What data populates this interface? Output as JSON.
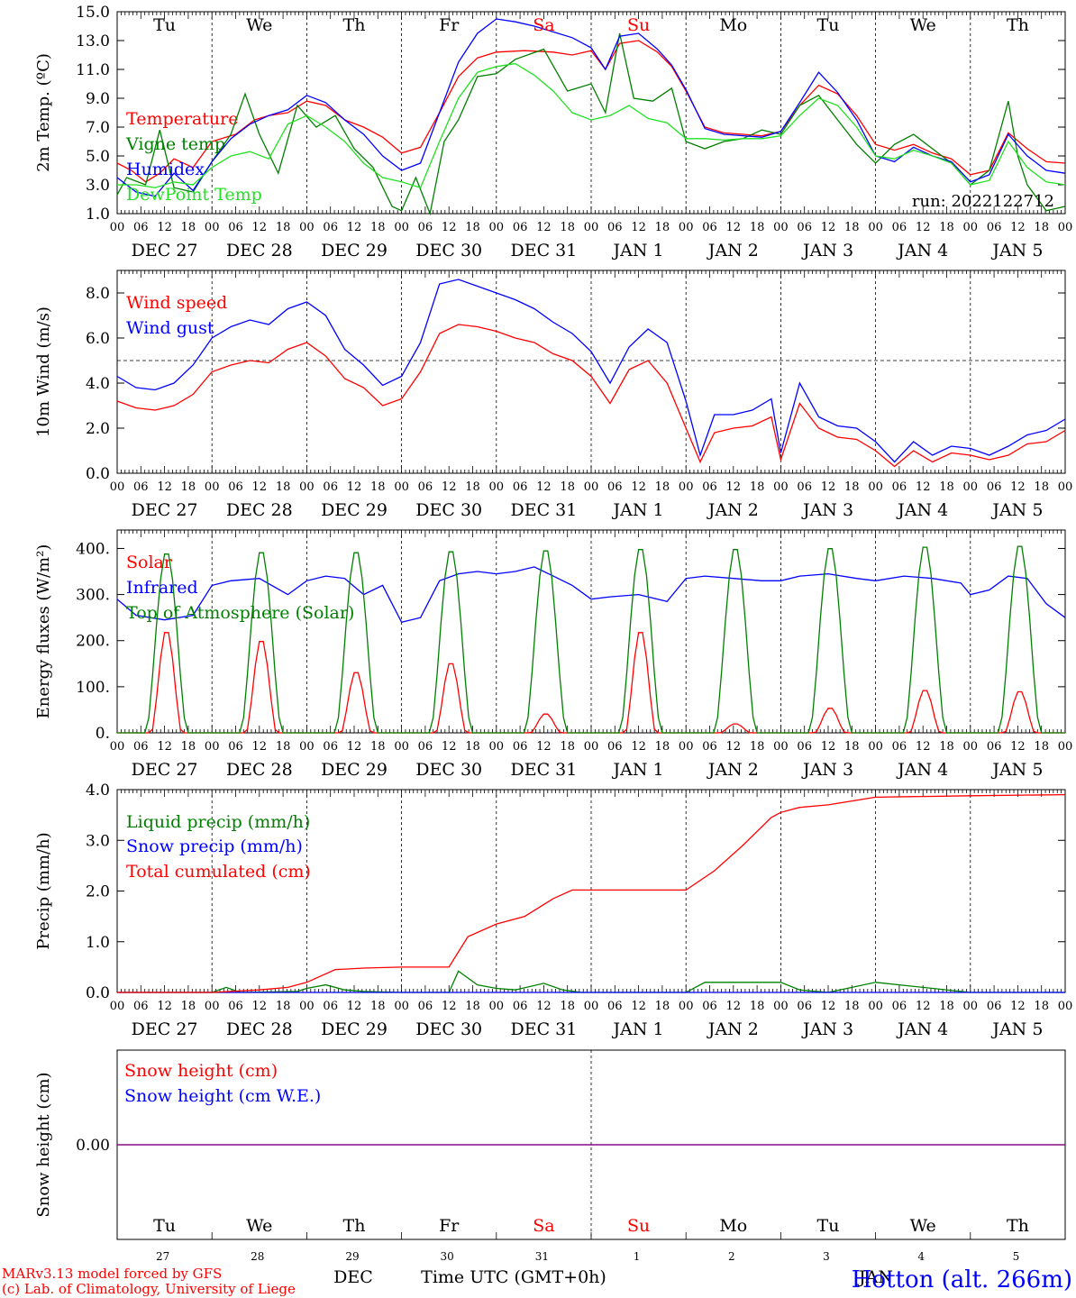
{
  "x_axis": {
    "hour_ticks": [
      "00",
      "06",
      "12",
      "18"
    ],
    "date_labels": [
      "DEC 27",
      "DEC 28",
      "DEC 29",
      "DEC 30",
      "DEC 31",
      "JAN 1",
      "JAN 2",
      "JAN 3",
      "JAN 4",
      "JAN 5"
    ],
    "day_names": [
      "Tu",
      "We",
      "Th",
      "Fr",
      "Sa",
      "Su",
      "Mo",
      "Tu",
      "We",
      "Th"
    ],
    "weekend_flags": [
      false,
      false,
      false,
      false,
      true,
      true,
      false,
      false,
      false,
      false
    ],
    "day_numbers": [
      "27",
      "28",
      "29",
      "30",
      "31",
      "1",
      "2",
      "3",
      "4",
      "5"
    ],
    "title": "Time UTC (GMT+0h)",
    "month_label_1": "DEC",
    "month_label_2": "JAN"
  },
  "footer": {
    "credit_line_1": "MARv3.13 model forced by GFS",
    "credit_line_2": "(c) Lab. of Climatology, University of Liege",
    "station": "Hotton (alt. 266m)"
  },
  "colors": {
    "red": "#ff0000",
    "green": "#008000",
    "blue": "#0000ff",
    "lightgreen": "#22e022",
    "purple": "#800080",
    "weekend": "#ff0000"
  },
  "chart_data": [
    {
      "type": "line",
      "ylabel": "2m Temp. (ºC)",
      "ylim": [
        1.0,
        15.0
      ],
      "yticks": [
        "1.0",
        "3.0",
        "5.0",
        "7.0",
        "9.0",
        "11.0",
        "13.0",
        "15.0"
      ],
      "ytick_values": [
        1,
        3,
        5,
        7,
        9,
        11,
        13,
        15
      ],
      "annotation": "run: 2022122712",
      "x_unit": "days since DEC 27 00 UTC",
      "series": [
        {
          "name": "Temperature",
          "color": "red",
          "x": [
            0,
            0.15,
            0.3,
            0.45,
            0.6,
            0.8,
            1.0,
            1.25,
            1.45,
            1.6,
            1.8,
            2.0,
            2.2,
            2.4,
            2.6,
            2.8,
            3.0,
            3.2,
            3.4,
            3.6,
            3.8,
            4.0,
            4.3,
            4.6,
            4.8,
            5.0,
            5.15,
            5.3,
            5.5,
            5.7,
            5.85,
            6.0,
            6.2,
            6.4,
            6.6,
            6.8,
            7.0,
            7.2,
            7.4,
            7.6,
            7.8,
            8.0,
            8.2,
            8.4,
            8.6,
            8.8,
            9.0,
            9.2,
            9.4,
            9.6,
            9.8,
            10.0
          ],
          "y": [
            4.5,
            4.0,
            3.2,
            3.8,
            4.8,
            4.2,
            6.0,
            6.5,
            7.5,
            7.8,
            8.0,
            8.8,
            8.5,
            7.5,
            7.0,
            6.3,
            5.2,
            5.6,
            8.0,
            10.5,
            11.8,
            12.2,
            12.3,
            12.2,
            12.0,
            12.3,
            11.0,
            12.8,
            13.0,
            12.2,
            11.2,
            9.5,
            7.0,
            6.6,
            6.5,
            6.4,
            6.7,
            8.5,
            9.9,
            9.3,
            7.8,
            5.8,
            5.4,
            5.8,
            5.2,
            4.8,
            3.7,
            4.0,
            6.6,
            5.5,
            4.6,
            4.5
          ]
        },
        {
          "name": "Vigne temp",
          "color": "green",
          "x": [
            0,
            0.1,
            0.3,
            0.45,
            0.6,
            0.8,
            1.0,
            1.2,
            1.35,
            1.5,
            1.7,
            1.9,
            2.1,
            2.3,
            2.5,
            2.7,
            2.9,
            3.0,
            3.15,
            3.3,
            3.45,
            3.6,
            3.8,
            4.0,
            4.2,
            4.5,
            4.75,
            5.0,
            5.15,
            5.3,
            5.45,
            5.65,
            5.85,
            6.0,
            6.2,
            6.4,
            6.6,
            6.8,
            7.0,
            7.2,
            7.4,
            7.6,
            7.8,
            8.0,
            8.2,
            8.4,
            8.6,
            8.8,
            9.0,
            9.2,
            9.4,
            9.5,
            9.6,
            9.8,
            10.0
          ],
          "y": [
            2.3,
            3.5,
            3.0,
            6.8,
            2.8,
            2.5,
            4.6,
            6.5,
            9.3,
            6.5,
            3.8,
            8.5,
            7.0,
            7.8,
            5.5,
            4.2,
            1.5,
            1.2,
            3.5,
            1.0,
            6.0,
            7.5,
            10.5,
            10.7,
            11.7,
            12.4,
            9.5,
            10.0,
            8.0,
            13.5,
            9.0,
            8.8,
            9.7,
            6.0,
            5.5,
            6.0,
            6.2,
            6.8,
            6.5,
            8.5,
            9.2,
            7.5,
            5.8,
            4.5,
            5.8,
            6.5,
            5.5,
            4.5,
            3.0,
            4.0,
            8.8,
            5.0,
            3.0,
            1.2,
            1.5
          ]
        },
        {
          "name": "Humidex",
          "color": "blue",
          "x": [
            0,
            0.2,
            0.4,
            0.6,
            0.8,
            1.0,
            1.2,
            1.4,
            1.6,
            1.8,
            2.0,
            2.2,
            2.4,
            2.6,
            2.8,
            3.0,
            3.2,
            3.4,
            3.6,
            3.8,
            4.0,
            4.2,
            4.4,
            4.6,
            4.8,
            5.0,
            5.15,
            5.3,
            5.5,
            5.7,
            5.85,
            6.0,
            6.2,
            6.4,
            6.6,
            6.8,
            7.0,
            7.2,
            7.4,
            7.6,
            7.8,
            8.0,
            8.2,
            8.4,
            8.6,
            8.8,
            9.0,
            9.2,
            9.4,
            9.6,
            9.8,
            10.0
          ],
          "y": [
            3.5,
            2.5,
            2.2,
            3.8,
            2.6,
            4.6,
            6.2,
            7.2,
            7.8,
            8.2,
            9.2,
            8.7,
            7.5,
            6.5,
            5.0,
            4.0,
            4.5,
            8.0,
            11.5,
            13.5,
            14.5,
            14.3,
            14.0,
            13.6,
            13.2,
            12.5,
            11.0,
            13.3,
            13.5,
            12.4,
            11.3,
            9.6,
            6.9,
            6.5,
            6.4,
            6.3,
            6.7,
            8.7,
            10.8,
            9.4,
            7.5,
            5.0,
            4.6,
            5.6,
            5.0,
            4.6,
            3.2,
            3.7,
            6.5,
            5.0,
            4.0,
            3.8
          ]
        },
        {
          "name": "DewPoint Temp",
          "color": "lightgreen",
          "x": [
            0,
            0.2,
            0.4,
            0.6,
            0.8,
            1.0,
            1.2,
            1.4,
            1.6,
            1.8,
            2.0,
            2.2,
            2.4,
            2.6,
            2.8,
            3.0,
            3.2,
            3.4,
            3.6,
            3.8,
            4.0,
            4.2,
            4.4,
            4.6,
            4.8,
            5.0,
            5.2,
            5.4,
            5.6,
            5.8,
            6.0,
            6.2,
            6.4,
            6.6,
            6.8,
            7.0,
            7.2,
            7.4,
            7.6,
            7.8,
            8.0,
            8.2,
            8.4,
            8.6,
            8.8,
            9.0,
            9.2,
            9.4,
            9.6,
            9.8,
            10.0
          ],
          "y": [
            3.0,
            3.0,
            2.8,
            3.2,
            3.0,
            4.2,
            5.0,
            5.3,
            4.8,
            7.2,
            7.8,
            7.0,
            6.0,
            4.5,
            3.5,
            3.2,
            2.8,
            6.0,
            9.0,
            10.8,
            11.2,
            11.4,
            10.6,
            9.5,
            8.0,
            7.5,
            7.8,
            8.5,
            7.6,
            7.3,
            6.2,
            6.2,
            6.1,
            6.2,
            6.2,
            6.4,
            7.8,
            9.0,
            8.5,
            7.0,
            5.0,
            4.8,
            5.4,
            5.0,
            4.5,
            3.0,
            3.3,
            6.0,
            4.2,
            3.2,
            3.0
          ]
        }
      ]
    },
    {
      "type": "line",
      "ylabel": "10m Wind (m/s)",
      "ylim": [
        0.0,
        9.0
      ],
      "yticks": [
        "0.0",
        "2.0",
        "4.0",
        "6.0",
        "8.0"
      ],
      "ytick_values": [
        0,
        2,
        4,
        6,
        8
      ],
      "reference_line": 5.0,
      "x_unit": "days since DEC 27 00 UTC",
      "series": [
        {
          "name": "Wind speed",
          "color": "red",
          "x": [
            0,
            0.2,
            0.4,
            0.6,
            0.8,
            1.0,
            1.2,
            1.4,
            1.6,
            1.8,
            2.0,
            2.2,
            2.4,
            2.6,
            2.8,
            3.0,
            3.2,
            3.4,
            3.6,
            3.8,
            4.0,
            4.2,
            4.4,
            4.6,
            4.8,
            5.0,
            5.2,
            5.4,
            5.6,
            5.8,
            6.0,
            6.15,
            6.3,
            6.5,
            6.7,
            6.9,
            7.0,
            7.2,
            7.4,
            7.6,
            7.8,
            8.0,
            8.2,
            8.4,
            8.6,
            8.8,
            9.0,
            9.2,
            9.4,
            9.6,
            9.8,
            10.0
          ],
          "y": [
            3.2,
            2.9,
            2.8,
            3.0,
            3.5,
            4.5,
            4.8,
            5.0,
            4.9,
            5.5,
            5.8,
            5.2,
            4.2,
            3.8,
            3.0,
            3.3,
            4.5,
            6.2,
            6.6,
            6.5,
            6.3,
            6.0,
            5.8,
            5.3,
            5.0,
            4.3,
            3.1,
            4.6,
            5.0,
            4.0,
            2.0,
            0.5,
            1.8,
            2.0,
            2.1,
            2.5,
            0.6,
            3.1,
            2.0,
            1.6,
            1.5,
            1.0,
            0.3,
            1.0,
            0.5,
            0.9,
            0.8,
            0.6,
            0.8,
            1.3,
            1.4,
            1.9
          ]
        },
        {
          "name": "Wind gust",
          "color": "blue",
          "x": [
            0,
            0.2,
            0.4,
            0.6,
            0.8,
            1.0,
            1.2,
            1.4,
            1.6,
            1.8,
            2.0,
            2.2,
            2.4,
            2.6,
            2.8,
            3.0,
            3.2,
            3.4,
            3.6,
            3.8,
            4.0,
            4.2,
            4.4,
            4.6,
            4.8,
            5.0,
            5.2,
            5.4,
            5.6,
            5.8,
            6.0,
            6.15,
            6.3,
            6.5,
            6.7,
            6.9,
            7.0,
            7.2,
            7.4,
            7.6,
            7.8,
            8.0,
            8.2,
            8.4,
            8.6,
            8.8,
            9.0,
            9.2,
            9.4,
            9.6,
            9.8,
            10.0
          ],
          "y": [
            4.3,
            3.8,
            3.7,
            4.0,
            4.8,
            6.0,
            6.5,
            6.8,
            6.6,
            7.3,
            7.6,
            7.0,
            5.5,
            4.8,
            3.9,
            4.3,
            5.8,
            8.4,
            8.6,
            8.3,
            8.0,
            7.7,
            7.3,
            6.7,
            6.2,
            5.4,
            4.0,
            5.6,
            6.4,
            5.8,
            3.2,
            0.8,
            2.6,
            2.6,
            2.8,
            3.3,
            0.9,
            4.0,
            2.5,
            2.1,
            2.0,
            1.4,
            0.5,
            1.4,
            0.8,
            1.2,
            1.1,
            0.8,
            1.2,
            1.7,
            1.9,
            2.4
          ]
        }
      ]
    },
    {
      "type": "line",
      "ylabel": "Energy fluxes (W/m²)",
      "ylim": [
        0,
        440
      ],
      "yticks": [
        "0.",
        "100.",
        "200.",
        "300.",
        "400."
      ],
      "ytick_values": [
        0,
        100,
        200,
        300,
        400
      ],
      "x_unit": "days since DEC 27 00 UTC",
      "series": [
        {
          "name": "Solar",
          "color": "red",
          "daily_peak": [
            225,
            205,
            135,
            155,
            42,
            225,
            20,
            55,
            95,
            92
          ]
        },
        {
          "name": "Infrared",
          "color": "blue",
          "x": [
            0,
            0.2,
            0.5,
            0.8,
            1.0,
            1.2,
            1.5,
            1.8,
            2.0,
            2.2,
            2.4,
            2.6,
            2.8,
            3.0,
            3.2,
            3.4,
            3.6,
            3.8,
            4.0,
            4.2,
            4.4,
            4.6,
            4.8,
            5.0,
            5.2,
            5.5,
            5.8,
            6.0,
            6.2,
            6.5,
            6.8,
            7.0,
            7.2,
            7.5,
            7.8,
            8.0,
            8.3,
            8.6,
            8.9,
            9.0,
            9.2,
            9.4,
            9.6,
            9.8,
            10.0
          ],
          "y": [
            290,
            255,
            245,
            255,
            320,
            330,
            335,
            300,
            330,
            340,
            335,
            300,
            320,
            240,
            250,
            330,
            345,
            350,
            345,
            350,
            360,
            340,
            320,
            290,
            295,
            300,
            285,
            335,
            340,
            335,
            330,
            330,
            340,
            345,
            335,
            330,
            340,
            335,
            325,
            300,
            310,
            340,
            335,
            280,
            250
          ]
        },
        {
          "name": "Top of Atmosphere (Solar)",
          "color": "green",
          "daily_peak": [
            395,
            398,
            398,
            400,
            402,
            405,
            405,
            407,
            410,
            412
          ]
        }
      ]
    },
    {
      "type": "line",
      "ylabel": "Precip (mm/h)",
      "ylim": [
        0.0,
        4.0
      ],
      "yticks": [
        "0.0",
        "1.0",
        "2.0",
        "3.0",
        "4.0"
      ],
      "ytick_values": [
        0,
        1,
        2,
        3,
        4
      ],
      "x_unit": "days since DEC 27 00 UTC",
      "series": [
        {
          "name": "Liquid precip (mm/h)",
          "color": "green",
          "x": [
            0,
            1.0,
            1.15,
            1.3,
            1.9,
            2.0,
            2.2,
            2.4,
            2.6,
            3.0,
            3.5,
            3.6,
            3.8,
            4.0,
            4.2,
            4.5,
            4.7,
            4.9,
            5.0,
            6.0,
            6.2,
            6.5,
            7.0,
            7.2,
            7.5,
            8.0,
            9.0,
            10.0
          ],
          "y": [
            0,
            0,
            0.1,
            0,
            0.02,
            0.08,
            0.15,
            0.05,
            0.02,
            0,
            0,
            0.42,
            0.15,
            0.08,
            0.05,
            0.18,
            0.05,
            0,
            0,
            0,
            0.2,
            0.2,
            0.2,
            0.05,
            0.0,
            0.2,
            0,
            0
          ]
        },
        {
          "name": "Snow precip (mm/h)",
          "color": "blue",
          "x": [
            0,
            10.0
          ],
          "y": [
            0,
            0
          ]
        },
        {
          "name": "Total cumulated (cm)",
          "color": "red",
          "x": [
            0,
            1.0,
            1.5,
            1.8,
            2.0,
            2.3,
            2.6,
            3.0,
            3.5,
            3.7,
            4.0,
            4.3,
            4.6,
            4.8,
            5.0,
            6.0,
            6.3,
            6.6,
            6.9,
            7.0,
            7.2,
            7.5,
            8.0,
            9.0,
            10.0
          ],
          "y": [
            0,
            0,
            0.05,
            0.1,
            0.2,
            0.45,
            0.48,
            0.5,
            0.5,
            1.1,
            1.35,
            1.5,
            1.85,
            2.02,
            2.02,
            2.02,
            2.4,
            2.9,
            3.45,
            3.55,
            3.65,
            3.7,
            3.85,
            3.88,
            3.9
          ]
        }
      ]
    },
    {
      "type": "line",
      "ylabel": "Snow height (cm)",
      "ylim": [
        -1,
        1
      ],
      "yticks": [
        "0.00"
      ],
      "ytick_values": [
        0
      ],
      "x_unit": "days since DEC 27 00 UTC",
      "series": [
        {
          "name": "Snow height (cm)",
          "color": "red",
          "x": [
            0,
            10.0
          ],
          "y": [
            0,
            0
          ]
        },
        {
          "name": "Snow height (cm W.E.)",
          "color": "blue",
          "x": [
            0,
            10.0
          ],
          "y": [
            0,
            0
          ]
        }
      ]
    }
  ]
}
